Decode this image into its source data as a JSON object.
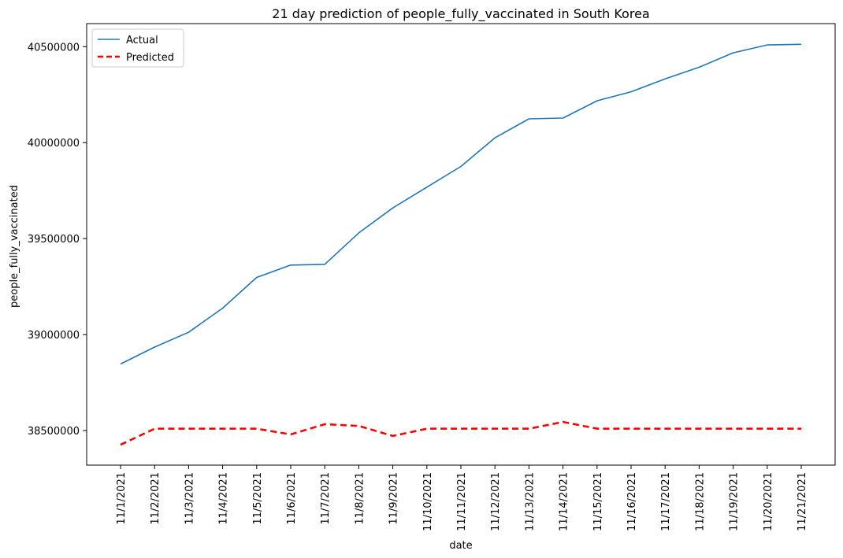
{
  "chart_data": {
    "type": "line",
    "title": "21 day prediction of people_fully_vaccinated in South Korea",
    "xlabel": "date",
    "ylabel": "people_fully_vaccinated",
    "categories": [
      "11/1/2021",
      "11/2/2021",
      "11/3/2021",
      "11/4/2021",
      "11/5/2021",
      "11/6/2021",
      "11/7/2021",
      "11/8/2021",
      "11/9/2021",
      "11/10/2021",
      "11/11/2021",
      "11/12/2021",
      "11/13/2021",
      "11/14/2021",
      "11/15/2021",
      "11/16/2021",
      "11/17/2021",
      "11/18/2021",
      "11/19/2021",
      "11/20/2021",
      "11/21/2021"
    ],
    "yticks": [
      "38500000",
      "39000000",
      "39500000",
      "40000000",
      "40500000"
    ],
    "ylim": [
      38320000,
      40620000
    ],
    "grid": false,
    "legend_position": "top-left",
    "series": [
      {
        "name": "Actual",
        "color": "#1f77b4",
        "style": "solid",
        "values": [
          38847000,
          38935000,
          39012000,
          39138000,
          39298000,
          39362000,
          39366000,
          39530000,
          39660000,
          39768000,
          39876000,
          40025000,
          40124000,
          40128000,
          40218000,
          40265000,
          40332000,
          40393000,
          40468000,
          40509000,
          40512000
        ]
      },
      {
        "name": "Predicted",
        "color": "#ff0000",
        "style": "dashed",
        "values": [
          38426000,
          38510000,
          38510000,
          38510000,
          38510000,
          38480000,
          38533000,
          38524000,
          38472000,
          38510000,
          38510000,
          38510000,
          38510000,
          38545000,
          38510000,
          38510000,
          38510000,
          38510000,
          38510000,
          38510000,
          38510000
        ]
      }
    ]
  }
}
